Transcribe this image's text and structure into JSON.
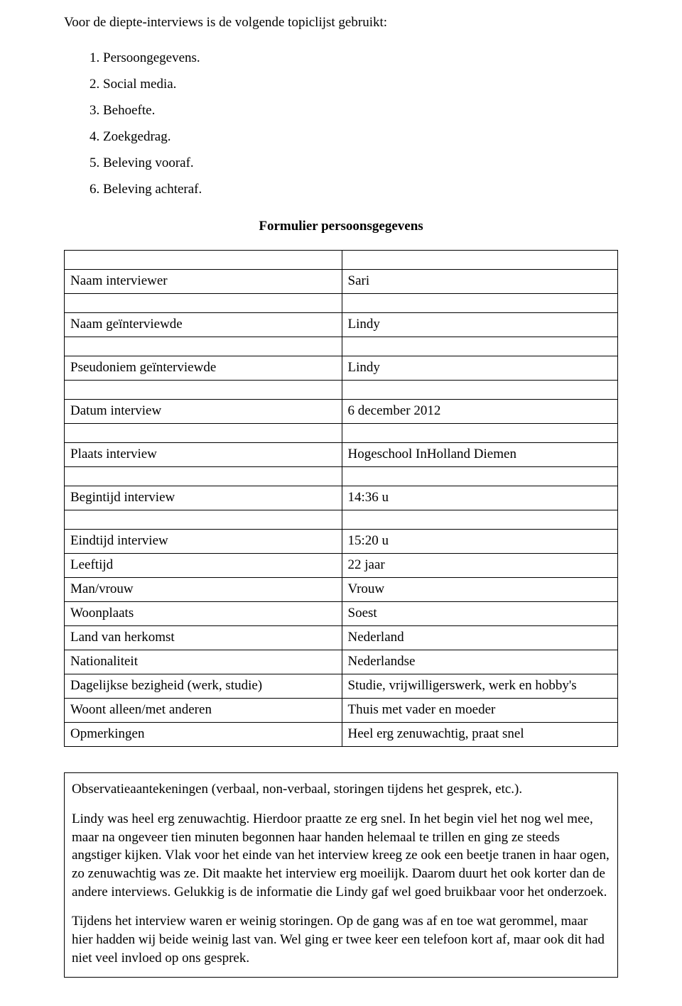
{
  "intro": "Voor de diepte-interviews is de volgende topiclijst gebruikt:",
  "list": [
    "1.  Persoongegevens.",
    "2.  Social media.",
    "3.  Behoefte.",
    "4.  Zoekgedrag.",
    "5.  Beleving vooraf.",
    "6.  Beleving achteraf."
  ],
  "form_title": "Formulier persoonsgegevens",
  "rows": {
    "r1": {
      "label": "Naam interviewer",
      "value": "Sari"
    },
    "r2": {
      "label": "Naam geïnterviewde",
      "value": "Lindy"
    },
    "r3": {
      "label": "Pseudoniem geïnterviewde",
      "value": "Lindy"
    },
    "r4": {
      "label": "Datum interview",
      "value": "6 december 2012"
    },
    "r5": {
      "label": "Plaats interview",
      "value": "Hogeschool InHolland Diemen"
    },
    "r6": {
      "label": "Begintijd interview",
      "value": "14:36 u"
    },
    "r7": {
      "label": "Eindtijd interview",
      "value": "15:20 u"
    },
    "r8": {
      "label": "Leeftijd",
      "value": "22 jaar"
    },
    "r9": {
      "label": "Man/vrouw",
      "value": "Vrouw"
    },
    "r10": {
      "label": "Woonplaats",
      "value": "Soest"
    },
    "r11": {
      "label": "Land van herkomst",
      "value": "Nederland"
    },
    "r12": {
      "label": "Nationaliteit",
      "value": "Nederlandse"
    },
    "r13": {
      "label": "Dagelijkse bezigheid (werk, studie)",
      "value": "Studie, vrijwilligerswerk, werk en hobby's"
    },
    "r14": {
      "label": "Woont alleen/met anderen",
      "value": "Thuis met vader en moeder"
    },
    "r15": {
      "label": "Opmerkingen",
      "value": "Heel erg zenuwachtig, praat snel"
    }
  },
  "obs": {
    "p1": "Observatieaantekeningen (verbaal, non-verbaal, storingen tijdens het gesprek, etc.).",
    "p2": "Lindy was heel erg zenuwachtig. Hierdoor praatte ze erg snel. In het begin viel het nog wel mee, maar na ongeveer tien minuten begonnen haar handen helemaal te trillen en ging ze steeds angstiger kijken. Vlak voor het einde van het interview kreeg ze ook een beetje tranen in haar ogen, zo zenuwachtig was ze. Dit maakte het interview erg moeilijk. Daarom duurt het ook korter dan de andere interviews. Gelukkig is de informatie die Lindy gaf wel goed bruikbaar voor het onderzoek.",
    "p3": "Tijdens het interview waren er weinig storingen. Op de gang was af en toe wat gerommel, maar hier hadden wij beide weinig last van. Wel ging er twee keer een telefoon kort af, maar ook dit had niet veel invloed op ons gesprek."
  }
}
